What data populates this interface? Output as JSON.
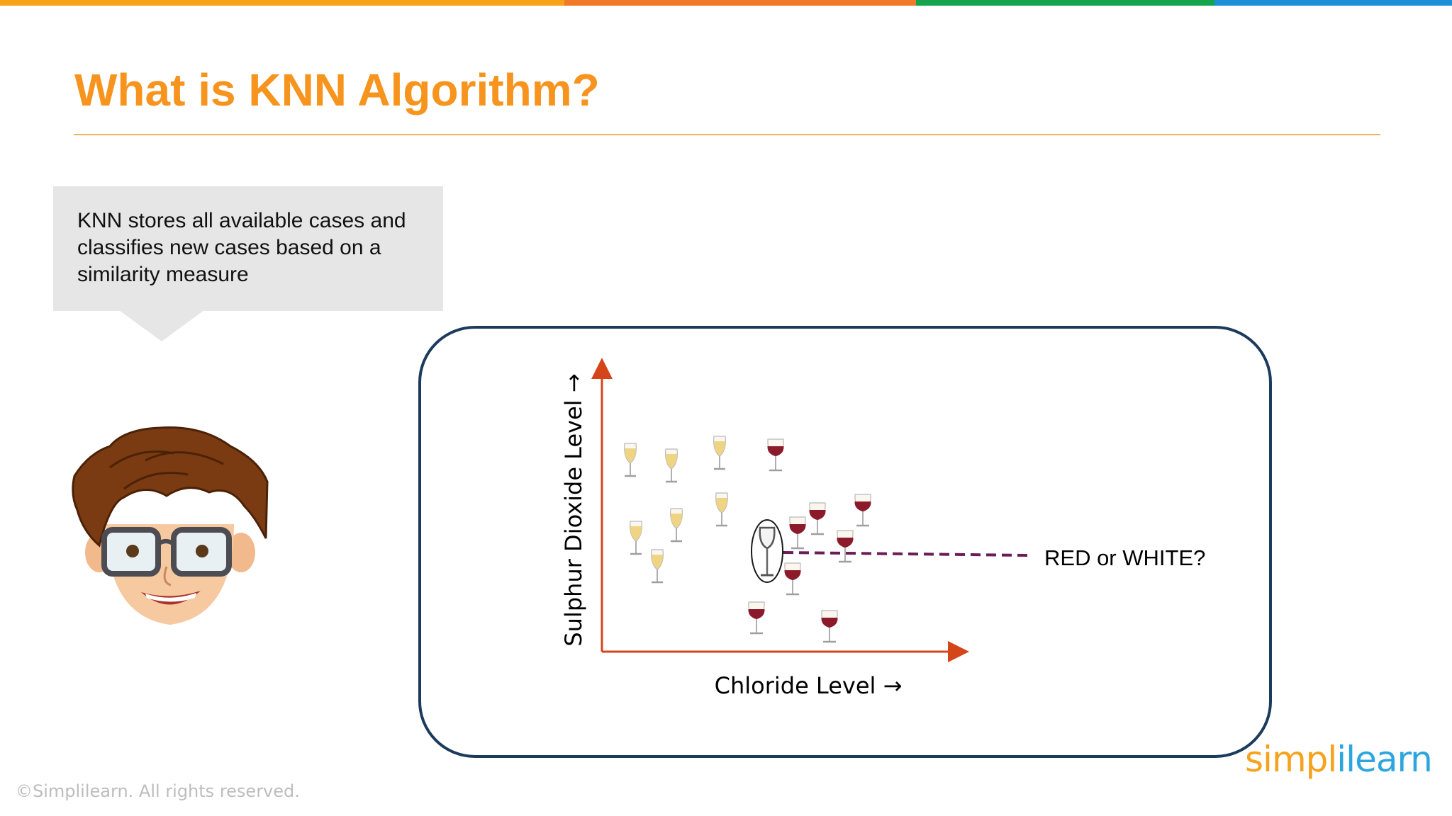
{
  "colors": {
    "brand_orange": "#F7941D",
    "top_bar": [
      "#F7A21B",
      "#F07A2A",
      "#14A44D",
      "#1E90D8"
    ],
    "axis": "#D4451A",
    "frame": "#1B3A5C",
    "dashed_line": "#6B1D5A",
    "red_wine": "#8B1A2B",
    "white_wine": "#F0D98A"
  },
  "slide": {
    "title": "What is KNN Algorithm?",
    "callout_text": "KNN stores all available cases and classifies new cases based on a similarity measure",
    "copyright": "©Simplilearn. All rights reserved.",
    "logo_text_1": "simpl",
    "logo_text_2": "ilearn"
  },
  "diagram": {
    "y_axis_label": "Sulphur Dioxide Level →",
    "x_axis_label": "Chloride Level →",
    "question_label": "RED or WHITE?",
    "icons": {
      "person": "cartoon-boy-with-glasses",
      "white_glass": "white-wine-glass",
      "red_glass": "red-wine-glass",
      "query_glass": "empty-wine-glass"
    }
  }
}
